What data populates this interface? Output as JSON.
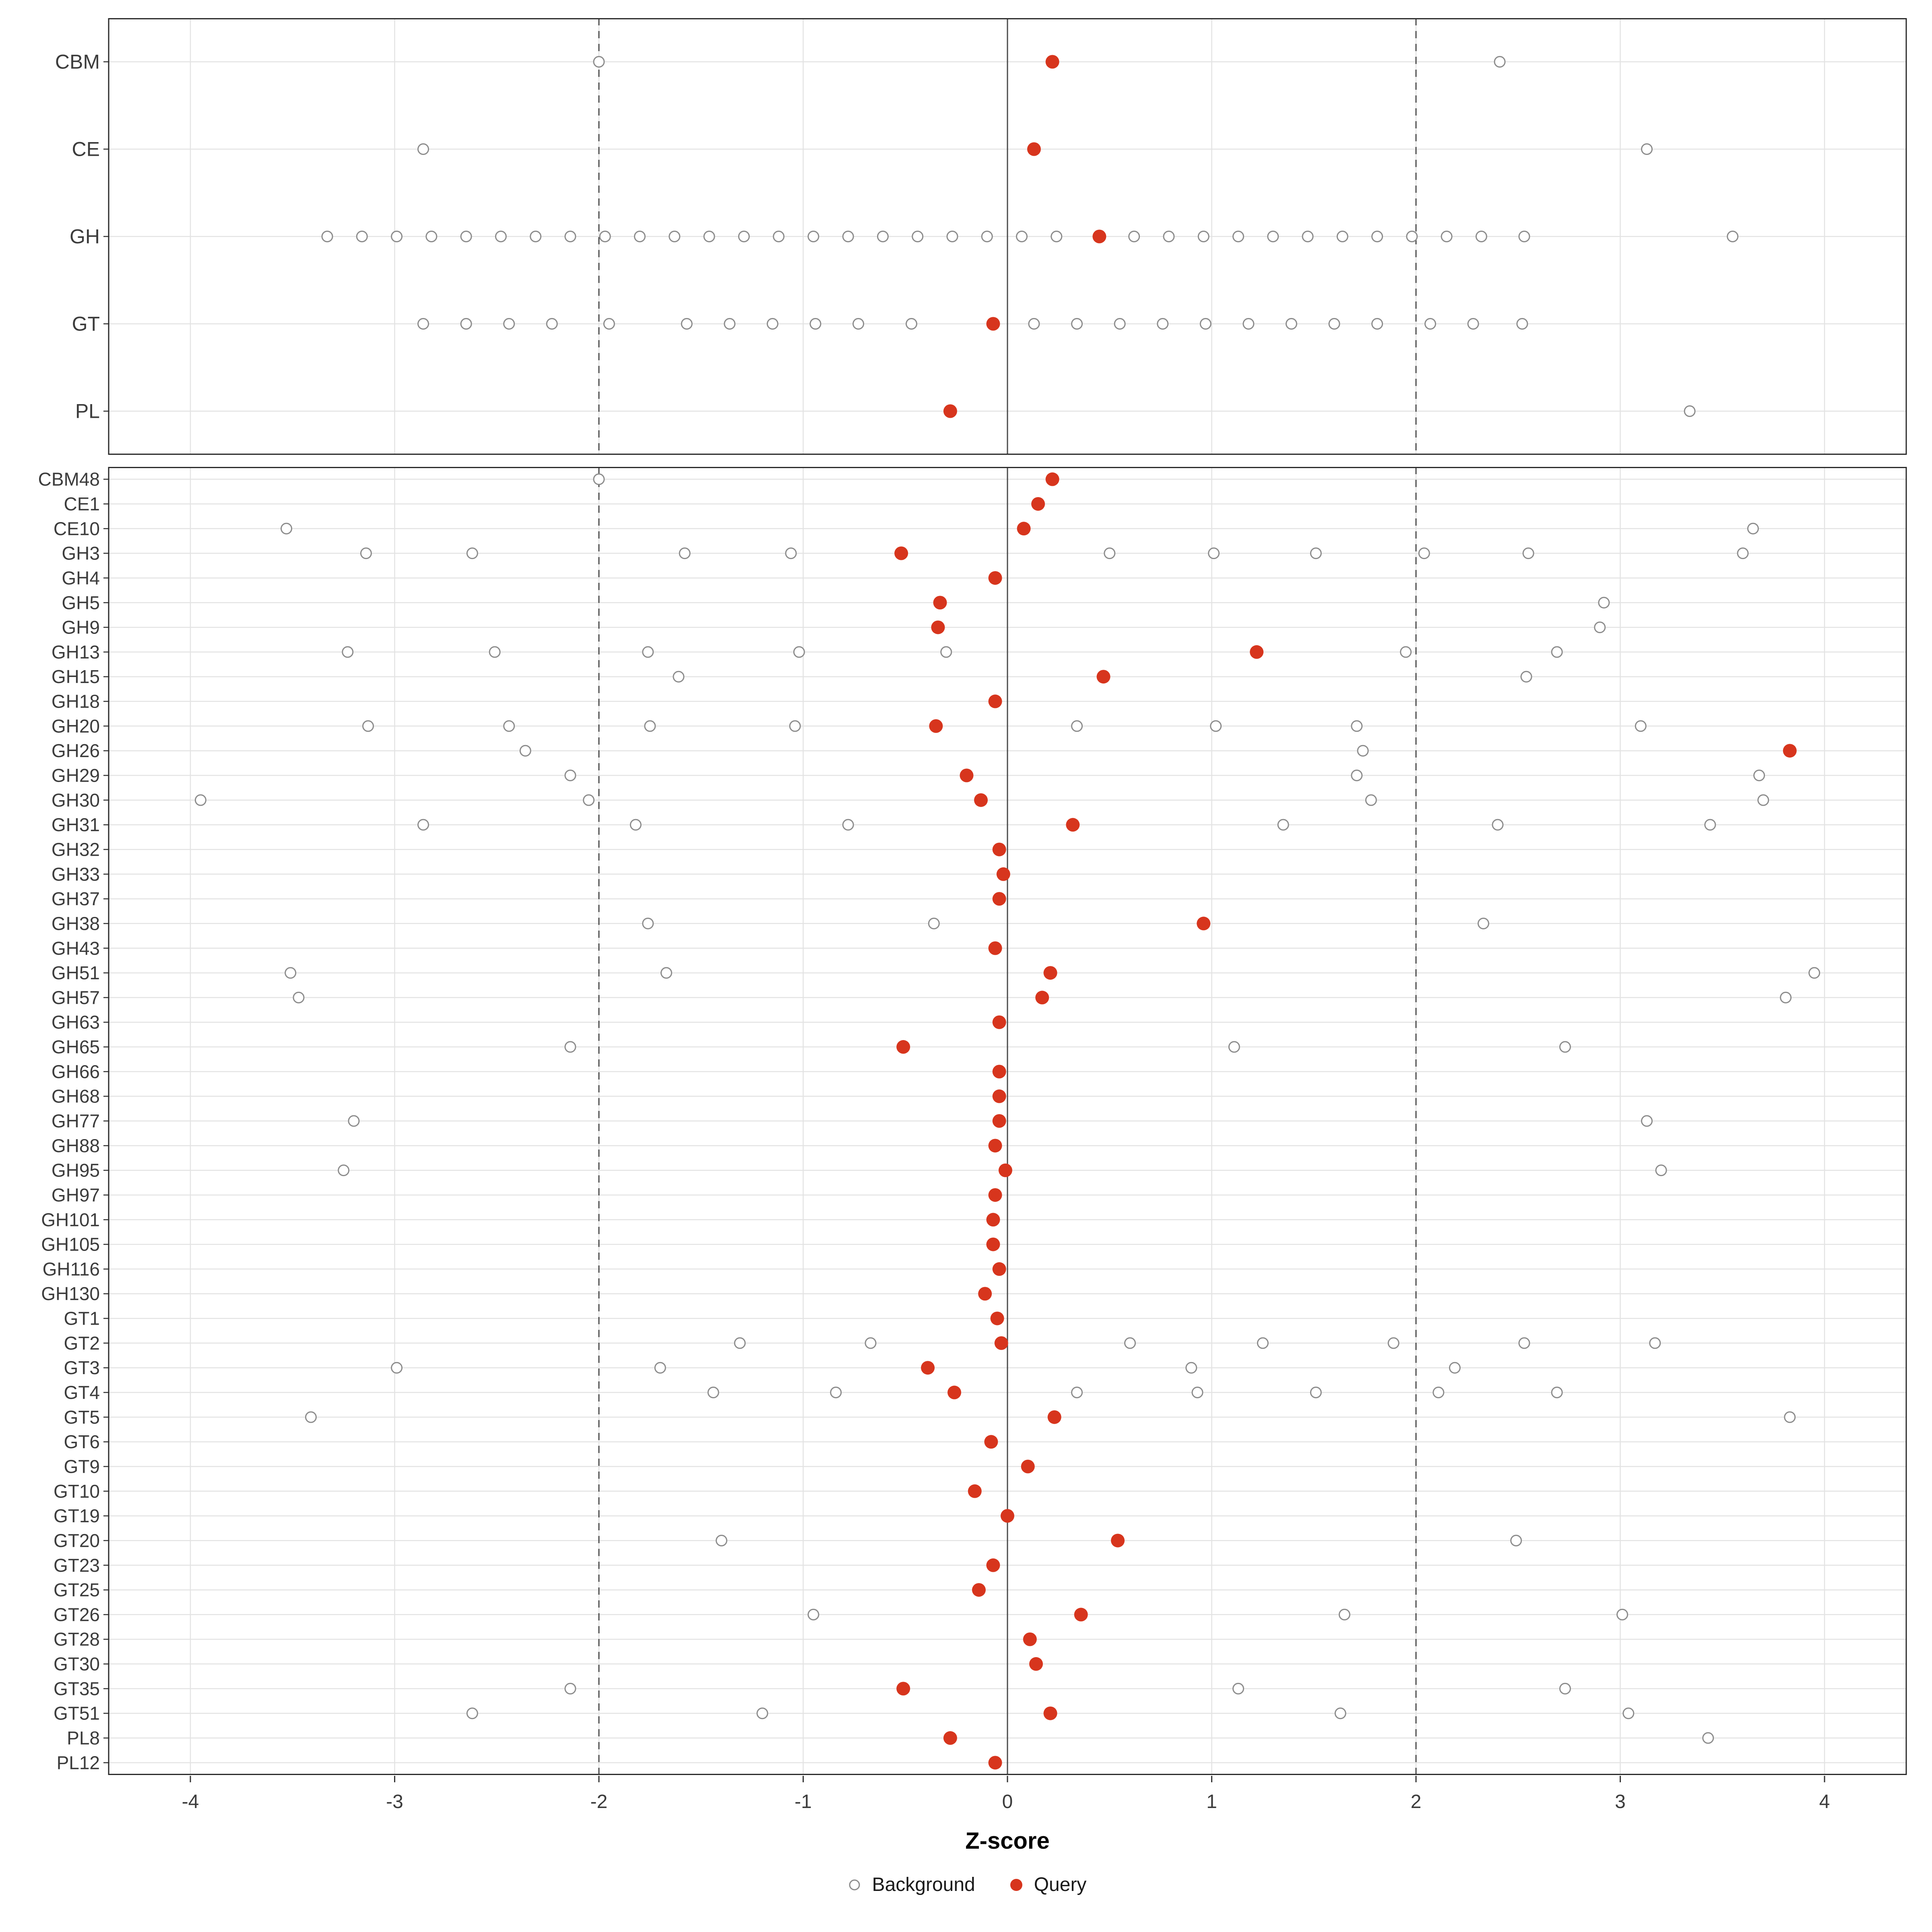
{
  "chart_data": {
    "type": "scatter",
    "title": "",
    "xlabel": "Z-score",
    "ylabel": "",
    "xlim": [
      -4.4,
      4.4
    ],
    "x_ticks": [
      -4,
      -3,
      -2,
      -1,
      0,
      1,
      2,
      3,
      4
    ],
    "grid": true,
    "legend_position": "bottom",
    "reference_lines": {
      "solid": [
        0
      ],
      "dashed": [
        -2,
        2
      ]
    },
    "colors": {
      "query": "#D7351D",
      "background_stroke": "#8C8C8C",
      "grid": "#E3E3E3",
      "axis_text": "#3C3C3C",
      "border": "#2B2B2B"
    },
    "legend": [
      {
        "label": "Background",
        "style": "open"
      },
      {
        "label": "Query",
        "style": "filled"
      }
    ],
    "panels": [
      {
        "name": "summary",
        "rows": [
          {
            "label": "CBM",
            "query": 0.22,
            "background": [
              -2.0,
              2.41
            ]
          },
          {
            "label": "CE",
            "query": 0.13,
            "background": [
              -2.86,
              3.13
            ]
          },
          {
            "label": "GH",
            "query": 0.45,
            "background": [
              -3.33,
              -3.16,
              -2.99,
              -2.82,
              -2.65,
              -2.48,
              -2.31,
              -2.14,
              -1.97,
              -1.8,
              -1.63,
              -1.46,
              -1.29,
              -1.12,
              -0.95,
              -0.78,
              -0.61,
              -0.44,
              -0.27,
              -0.1,
              0.07,
              0.24,
              0.62,
              0.79,
              0.96,
              1.13,
              1.3,
              1.47,
              1.64,
              1.81,
              1.98,
              2.15,
              2.32,
              2.53,
              3.55
            ]
          },
          {
            "label": "GT",
            "query": -0.07,
            "background": [
              -2.86,
              -2.65,
              -2.44,
              -2.23,
              -1.95,
              -1.57,
              -1.36,
              -1.15,
              -0.94,
              -0.73,
              -0.47,
              0.13,
              0.34,
              0.55,
              0.76,
              0.97,
              1.18,
              1.39,
              1.6,
              1.81,
              2.07,
              2.28,
              2.52
            ]
          },
          {
            "label": "PL",
            "query": -0.28,
            "background": [
              3.34
            ]
          }
        ]
      },
      {
        "name": "families",
        "rows": [
          {
            "label": "CBM48",
            "query": 0.22,
            "background": [
              -2.0
            ]
          },
          {
            "label": "CE1",
            "query": 0.15,
            "background": []
          },
          {
            "label": "CE10",
            "query": 0.08,
            "background": [
              -3.53,
              3.65
            ]
          },
          {
            "label": "GH3",
            "query": -0.52,
            "background": [
              -3.14,
              -2.62,
              -1.58,
              -1.06,
              0.5,
              1.01,
              1.51,
              2.04,
              2.55,
              3.6
            ]
          },
          {
            "label": "GH4",
            "query": -0.06,
            "background": []
          },
          {
            "label": "GH5",
            "query": -0.33,
            "background": [
              2.92
            ]
          },
          {
            "label": "GH9",
            "query": -0.34,
            "background": [
              2.9
            ]
          },
          {
            "label": "GH13",
            "query": 1.22,
            "background": [
              -3.23,
              -2.51,
              -1.76,
              -1.02,
              -0.3,
              1.95,
              2.69
            ]
          },
          {
            "label": "GH15",
            "query": 0.47,
            "background": [
              -1.61,
              2.54
            ]
          },
          {
            "label": "GH18",
            "query": -0.06,
            "background": []
          },
          {
            "label": "GH20",
            "query": -0.35,
            "background": [
              -3.13,
              -2.44,
              -1.75,
              -1.04,
              0.34,
              1.02,
              1.71,
              3.1
            ]
          },
          {
            "label": "GH26",
            "query": 3.83,
            "background": [
              -2.36,
              1.74
            ]
          },
          {
            "label": "GH29",
            "query": -0.2,
            "background": [
              -2.14,
              1.71,
              3.68
            ]
          },
          {
            "label": "GH30",
            "query": -0.13,
            "background": [
              -3.95,
              -2.05,
              1.78,
              3.7
            ]
          },
          {
            "label": "GH31",
            "query": 0.32,
            "background": [
              -2.86,
              -1.82,
              -0.78,
              1.35,
              2.4,
              3.44
            ]
          },
          {
            "label": "GH32",
            "query": -0.04,
            "background": []
          },
          {
            "label": "GH33",
            "query": -0.02,
            "background": []
          },
          {
            "label": "GH37",
            "query": -0.04,
            "background": []
          },
          {
            "label": "GH38",
            "query": 0.96,
            "background": [
              -1.76,
              -0.36,
              2.33
            ]
          },
          {
            "label": "GH43",
            "query": -0.06,
            "background": []
          },
          {
            "label": "GH51",
            "query": 0.21,
            "background": [
              -3.51,
              -1.67,
              3.95
            ]
          },
          {
            "label": "GH57",
            "query": 0.17,
            "background": [
              -3.47,
              3.81
            ]
          },
          {
            "label": "GH63",
            "query": -0.04,
            "background": []
          },
          {
            "label": "GH65",
            "query": -0.51,
            "background": [
              -2.14,
              1.11,
              2.73
            ]
          },
          {
            "label": "GH66",
            "query": -0.04,
            "background": []
          },
          {
            "label": "GH68",
            "query": -0.04,
            "background": []
          },
          {
            "label": "GH77",
            "query": -0.04,
            "background": [
              -3.2,
              3.13
            ]
          },
          {
            "label": "GH88",
            "query": -0.06,
            "background": []
          },
          {
            "label": "GH95",
            "query": -0.01,
            "background": [
              -3.25,
              3.2
            ]
          },
          {
            "label": "GH97",
            "query": -0.06,
            "background": []
          },
          {
            "label": "GH101",
            "query": -0.07,
            "background": []
          },
          {
            "label": "GH105",
            "query": -0.07,
            "background": []
          },
          {
            "label": "GH116",
            "query": -0.04,
            "background": []
          },
          {
            "label": "GH130",
            "query": -0.11,
            "background": []
          },
          {
            "label": "GT1",
            "query": -0.05,
            "background": []
          },
          {
            "label": "GT2",
            "query": -0.03,
            "background": [
              -1.31,
              -0.67,
              0.6,
              1.25,
              1.89,
              2.53,
              3.17
            ]
          },
          {
            "label": "GT3",
            "query": -0.39,
            "background": [
              -2.99,
              -1.7,
              0.9,
              2.19
            ]
          },
          {
            "label": "GT4",
            "query": -0.26,
            "background": [
              -1.44,
              -0.84,
              0.34,
              0.93,
              1.51,
              2.11,
              2.69
            ]
          },
          {
            "label": "GT5",
            "query": 0.23,
            "background": [
              -3.41,
              3.83
            ]
          },
          {
            "label": "GT6",
            "query": -0.08,
            "background": []
          },
          {
            "label": "GT9",
            "query": 0.1,
            "background": []
          },
          {
            "label": "GT10",
            "query": -0.16,
            "background": []
          },
          {
            "label": "GT19",
            "query": 0,
            "background": []
          },
          {
            "label": "GT20",
            "query": 0.54,
            "background": [
              -1.4,
              2.49
            ]
          },
          {
            "label": "GT23",
            "query": -0.07,
            "background": []
          },
          {
            "label": "GT25",
            "query": -0.14,
            "background": []
          },
          {
            "label": "GT26",
            "query": 0.36,
            "background": [
              -0.95,
              1.65,
              3.01
            ]
          },
          {
            "label": "GT28",
            "query": 0.11,
            "background": []
          },
          {
            "label": "GT30",
            "query": 0.14,
            "background": []
          },
          {
            "label": "GT35",
            "query": -0.51,
            "background": [
              -2.14,
              1.13,
              2.73
            ]
          },
          {
            "label": "GT51",
            "query": 0.21,
            "background": [
              -2.62,
              -1.2,
              1.63,
              3.04
            ]
          },
          {
            "label": "PL8",
            "query": -0.28,
            "background": [
              3.43
            ]
          },
          {
            "label": "PL12",
            "query": -0.06,
            "background": []
          }
        ]
      }
    ]
  }
}
